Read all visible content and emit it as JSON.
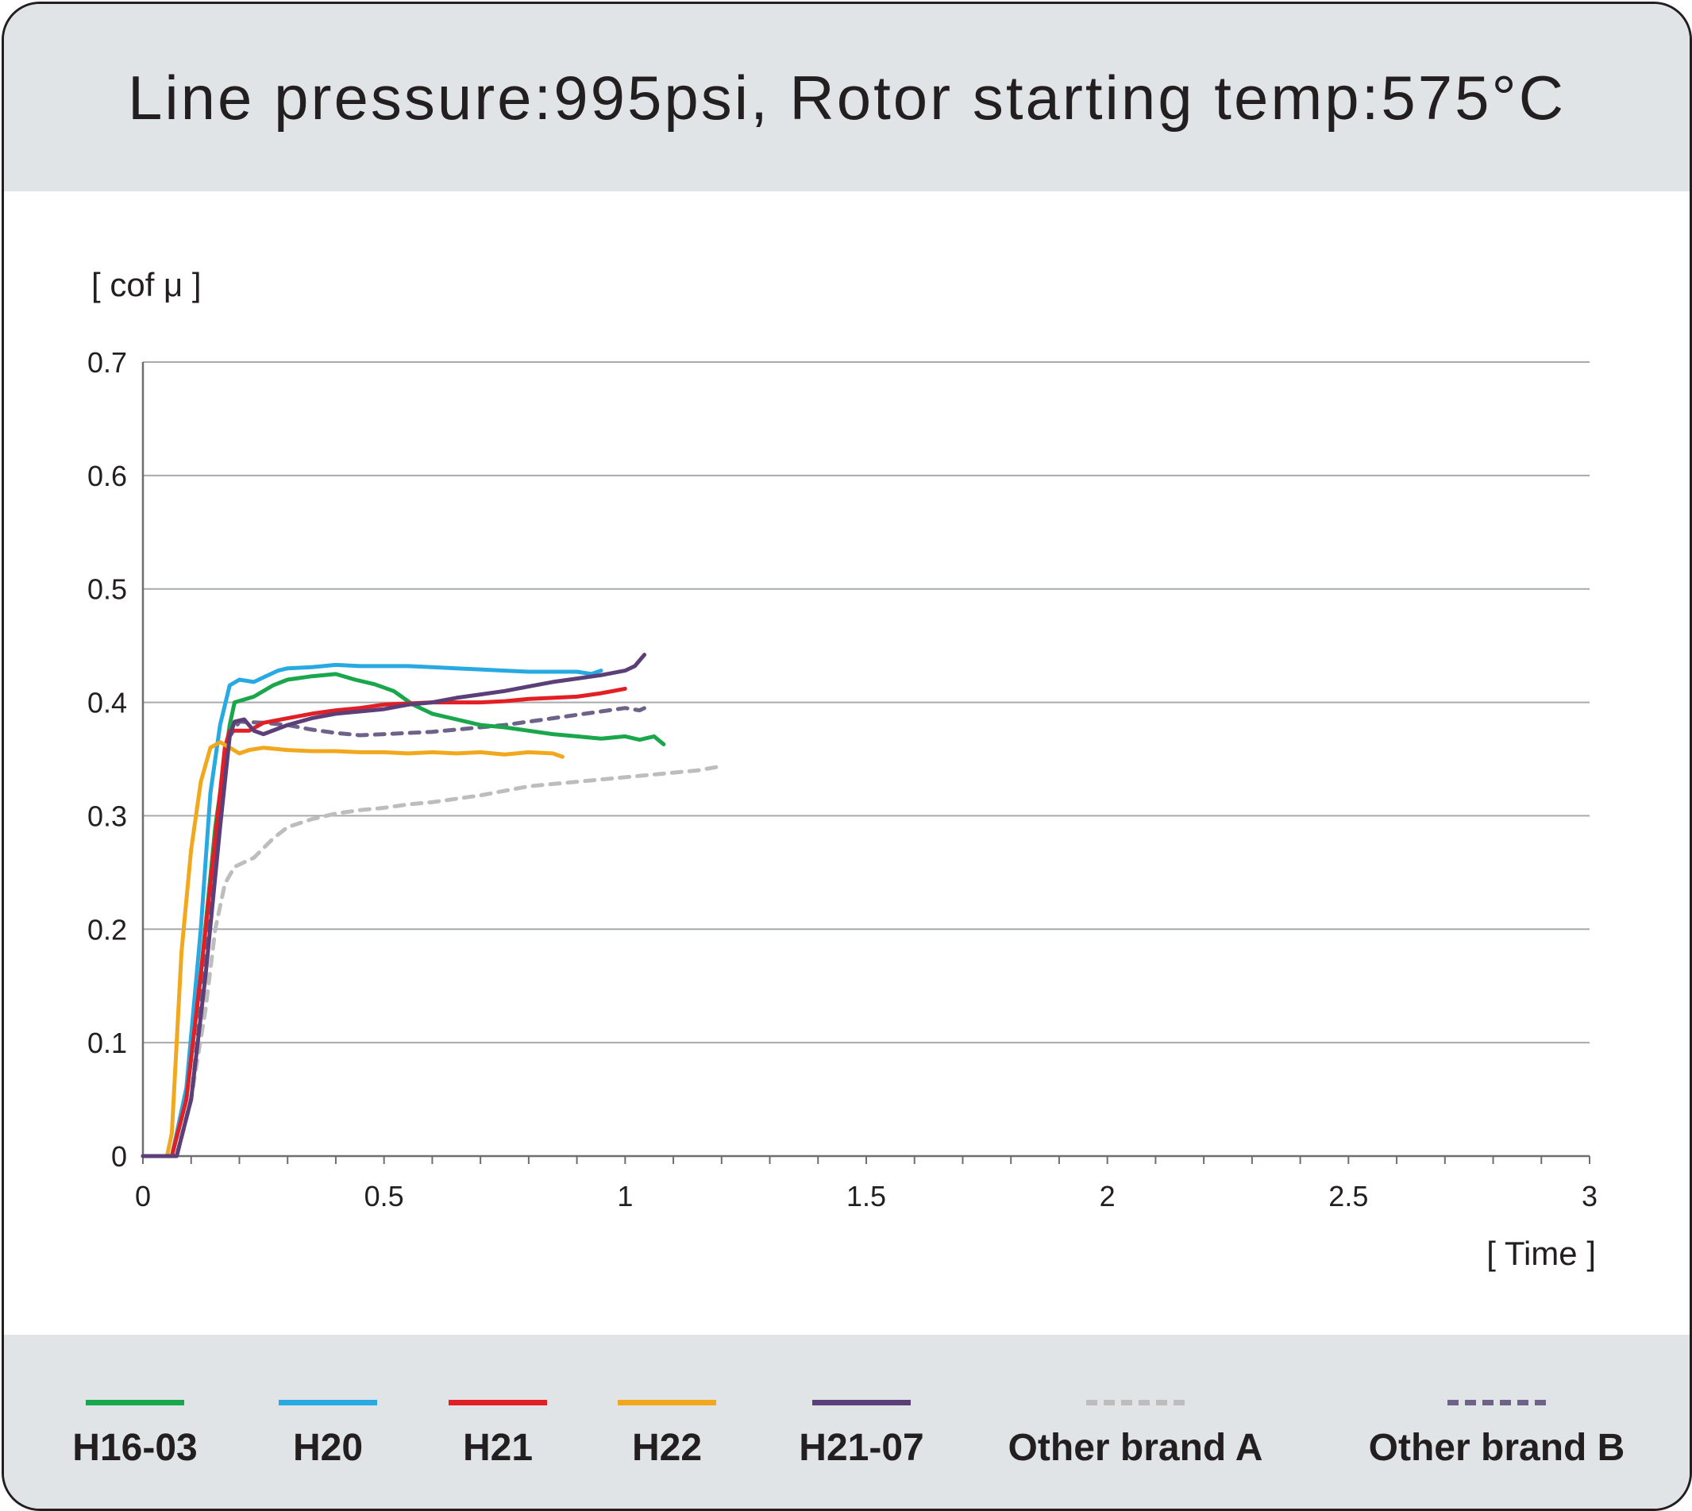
{
  "title": "Line pressure:995psi, Rotor starting temp:575°C",
  "chart_data": {
    "type": "line",
    "title": "Line pressure:995psi, Rotor starting temp:575°C",
    "xlabel": "[ Time ]",
    "ylabel": "[ cof μ ]",
    "xlim": [
      0,
      3
    ],
    "ylim": [
      0,
      0.7
    ],
    "x_ticks": [
      "0",
      "0.5",
      "1",
      "1.5",
      "2",
      "2.5",
      "3"
    ],
    "y_ticks": [
      "0",
      "0.1",
      "0.2",
      "0.3",
      "0.4",
      "0.5",
      "0.6",
      "0.7"
    ],
    "grid": "horizontal",
    "legend_position": "bottom",
    "series": [
      {
        "name": "H16-03",
        "color": "#1aa64b",
        "style": "solid",
        "points": [
          [
            0,
            0
          ],
          [
            0.06,
            0
          ],
          [
            0.09,
            0.05
          ],
          [
            0.12,
            0.16
          ],
          [
            0.15,
            0.29
          ],
          [
            0.18,
            0.38
          ],
          [
            0.19,
            0.4
          ],
          [
            0.23,
            0.405
          ],
          [
            0.27,
            0.415
          ],
          [
            0.3,
            0.42
          ],
          [
            0.35,
            0.423
          ],
          [
            0.4,
            0.425
          ],
          [
            0.44,
            0.42
          ],
          [
            0.48,
            0.416
          ],
          [
            0.52,
            0.41
          ],
          [
            0.56,
            0.398
          ],
          [
            0.6,
            0.39
          ],
          [
            0.65,
            0.385
          ],
          [
            0.7,
            0.38
          ],
          [
            0.75,
            0.378
          ],
          [
            0.8,
            0.375
          ],
          [
            0.85,
            0.372
          ],
          [
            0.9,
            0.37
          ],
          [
            0.95,
            0.368
          ],
          [
            1.0,
            0.37
          ],
          [
            1.03,
            0.367
          ],
          [
            1.06,
            0.37
          ],
          [
            1.08,
            0.363
          ]
        ]
      },
      {
        "name": "H20",
        "color": "#27a9e1",
        "style": "solid",
        "points": [
          [
            0,
            0
          ],
          [
            0.06,
            0
          ],
          [
            0.09,
            0.06
          ],
          [
            0.12,
            0.2
          ],
          [
            0.14,
            0.32
          ],
          [
            0.16,
            0.38
          ],
          [
            0.18,
            0.415
          ],
          [
            0.2,
            0.42
          ],
          [
            0.23,
            0.418
          ],
          [
            0.25,
            0.422
          ],
          [
            0.28,
            0.428
          ],
          [
            0.3,
            0.43
          ],
          [
            0.35,
            0.431
          ],
          [
            0.4,
            0.433
          ],
          [
            0.45,
            0.432
          ],
          [
            0.5,
            0.432
          ],
          [
            0.55,
            0.432
          ],
          [
            0.6,
            0.431
          ],
          [
            0.65,
            0.43
          ],
          [
            0.7,
            0.429
          ],
          [
            0.75,
            0.428
          ],
          [
            0.8,
            0.427
          ],
          [
            0.85,
            0.427
          ],
          [
            0.9,
            0.427
          ],
          [
            0.93,
            0.425
          ],
          [
            0.95,
            0.428
          ]
        ]
      },
      {
        "name": "H21",
        "color": "#e31f26",
        "style": "solid",
        "points": [
          [
            0,
            0
          ],
          [
            0.06,
            0
          ],
          [
            0.09,
            0.05
          ],
          [
            0.12,
            0.16
          ],
          [
            0.15,
            0.28
          ],
          [
            0.17,
            0.36
          ],
          [
            0.18,
            0.375
          ],
          [
            0.22,
            0.375
          ],
          [
            0.25,
            0.382
          ],
          [
            0.3,
            0.386
          ],
          [
            0.35,
            0.39
          ],
          [
            0.4,
            0.393
          ],
          [
            0.45,
            0.395
          ],
          [
            0.5,
            0.398
          ],
          [
            0.55,
            0.399
          ],
          [
            0.6,
            0.4
          ],
          [
            0.65,
            0.4
          ],
          [
            0.7,
            0.4
          ],
          [
            0.75,
            0.401
          ],
          [
            0.8,
            0.403
          ],
          [
            0.85,
            0.404
          ],
          [
            0.9,
            0.405
          ],
          [
            0.95,
            0.408
          ],
          [
            1.0,
            0.412
          ]
        ]
      },
      {
        "name": "H22",
        "color": "#f2a81d",
        "style": "solid",
        "points": [
          [
            0,
            0
          ],
          [
            0.05,
            0
          ],
          [
            0.06,
            0.02
          ],
          [
            0.08,
            0.18
          ],
          [
            0.1,
            0.27
          ],
          [
            0.12,
            0.33
          ],
          [
            0.14,
            0.36
          ],
          [
            0.16,
            0.365
          ],
          [
            0.18,
            0.36
          ],
          [
            0.2,
            0.355
          ],
          [
            0.22,
            0.358
          ],
          [
            0.25,
            0.36
          ],
          [
            0.3,
            0.358
          ],
          [
            0.35,
            0.357
          ],
          [
            0.4,
            0.357
          ],
          [
            0.45,
            0.356
          ],
          [
            0.5,
            0.356
          ],
          [
            0.55,
            0.355
          ],
          [
            0.6,
            0.356
          ],
          [
            0.65,
            0.355
          ],
          [
            0.7,
            0.356
          ],
          [
            0.75,
            0.354
          ],
          [
            0.8,
            0.356
          ],
          [
            0.85,
            0.355
          ],
          [
            0.87,
            0.352
          ]
        ]
      },
      {
        "name": "H21-07",
        "color": "#5c3f78",
        "style": "solid",
        "points": [
          [
            0,
            0
          ],
          [
            0.07,
            0
          ],
          [
            0.1,
            0.05
          ],
          [
            0.13,
            0.16
          ],
          [
            0.16,
            0.29
          ],
          [
            0.18,
            0.37
          ],
          [
            0.19,
            0.383
          ],
          [
            0.21,
            0.385
          ],
          [
            0.23,
            0.375
          ],
          [
            0.25,
            0.372
          ],
          [
            0.3,
            0.38
          ],
          [
            0.35,
            0.386
          ],
          [
            0.4,
            0.39
          ],
          [
            0.45,
            0.392
          ],
          [
            0.5,
            0.394
          ],
          [
            0.55,
            0.398
          ],
          [
            0.6,
            0.4
          ],
          [
            0.65,
            0.404
          ],
          [
            0.7,
            0.407
          ],
          [
            0.75,
            0.41
          ],
          [
            0.8,
            0.414
          ],
          [
            0.85,
            0.418
          ],
          [
            0.9,
            0.421
          ],
          [
            0.95,
            0.424
          ],
          [
            1.0,
            0.428
          ],
          [
            1.02,
            0.432
          ],
          [
            1.04,
            0.442
          ]
        ]
      },
      {
        "name": "Other brand A",
        "color": "#bdbdbd",
        "style": "dashed",
        "points": [
          [
            0,
            0
          ],
          [
            0.07,
            0
          ],
          [
            0.1,
            0.05
          ],
          [
            0.13,
            0.13
          ],
          [
            0.15,
            0.2
          ],
          [
            0.17,
            0.24
          ],
          [
            0.19,
            0.255
          ],
          [
            0.23,
            0.263
          ],
          [
            0.27,
            0.28
          ],
          [
            0.3,
            0.29
          ],
          [
            0.35,
            0.297
          ],
          [
            0.4,
            0.302
          ],
          [
            0.45,
            0.305
          ],
          [
            0.5,
            0.307
          ],
          [
            0.55,
            0.31
          ],
          [
            0.6,
            0.312
          ],
          [
            0.65,
            0.315
          ],
          [
            0.7,
            0.318
          ],
          [
            0.75,
            0.322
          ],
          [
            0.8,
            0.326
          ],
          [
            0.85,
            0.328
          ],
          [
            0.9,
            0.33
          ],
          [
            0.95,
            0.332
          ],
          [
            1.0,
            0.334
          ],
          [
            1.05,
            0.336
          ],
          [
            1.1,
            0.338
          ],
          [
            1.15,
            0.34
          ],
          [
            1.19,
            0.343
          ]
        ]
      },
      {
        "name": "Other brand B",
        "color": "#6f6288",
        "style": "dashed",
        "points": [
          [
            0,
            0
          ],
          [
            0.07,
            0
          ],
          [
            0.1,
            0.05
          ],
          [
            0.13,
            0.17
          ],
          [
            0.16,
            0.3
          ],
          [
            0.18,
            0.37
          ],
          [
            0.2,
            0.383
          ],
          [
            0.25,
            0.382
          ],
          [
            0.3,
            0.38
          ],
          [
            0.35,
            0.376
          ],
          [
            0.4,
            0.373
          ],
          [
            0.45,
            0.371
          ],
          [
            0.5,
            0.372
          ],
          [
            0.55,
            0.373
          ],
          [
            0.6,
            0.374
          ],
          [
            0.65,
            0.376
          ],
          [
            0.7,
            0.378
          ],
          [
            0.75,
            0.38
          ],
          [
            0.8,
            0.383
          ],
          [
            0.85,
            0.386
          ],
          [
            0.9,
            0.389
          ],
          [
            0.95,
            0.392
          ],
          [
            1.0,
            0.395
          ],
          [
            1.03,
            0.393
          ],
          [
            1.05,
            0.397
          ]
        ]
      }
    ]
  }
}
